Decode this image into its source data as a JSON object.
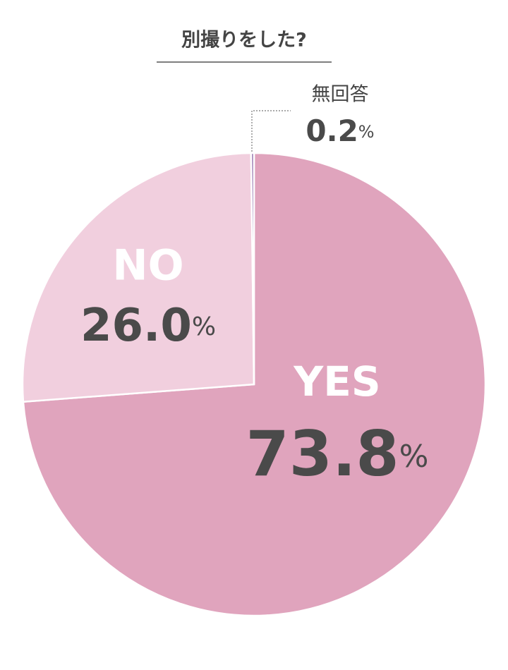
{
  "chart_data": {
    "type": "pie",
    "title": "別撮りをした?",
    "categories": [
      "YES",
      "NO",
      "無回答"
    ],
    "values": [
      73.8,
      26.0,
      0.2
    ],
    "value_labels": [
      "73.8%",
      "26.0%",
      "0.2%"
    ],
    "colors": [
      "#e0a4bd",
      "#f1cfde",
      "#9b7cb2"
    ]
  }
}
